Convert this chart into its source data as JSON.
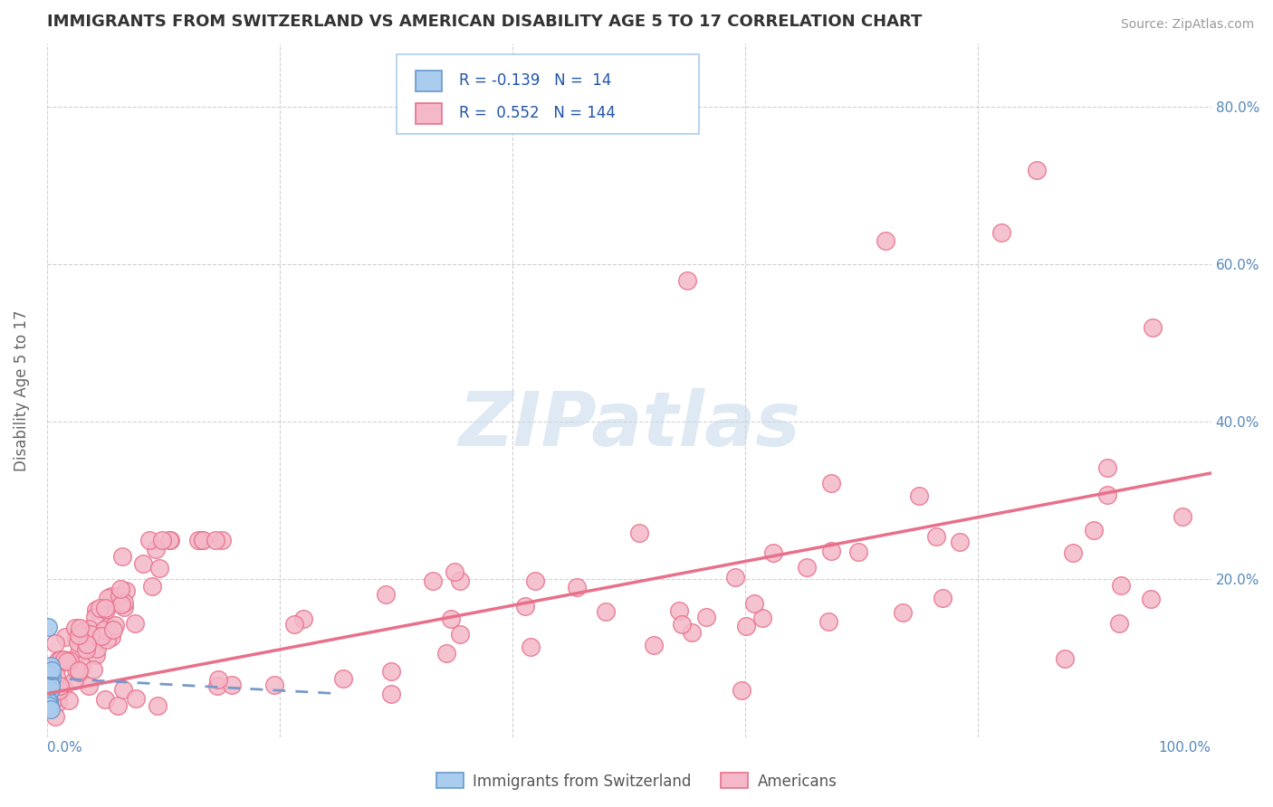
{
  "title": "IMMIGRANTS FROM SWITZERLAND VS AMERICAN DISABILITY AGE 5 TO 17 CORRELATION CHART",
  "source_text": "Source: ZipAtlas.com",
  "ylabel": "Disability Age 5 to 17",
  "xlim": [
    0.0,
    1.0
  ],
  "ylim": [
    0.0,
    0.88
  ],
  "grid_yticks": [
    0.0,
    0.2,
    0.4,
    0.6,
    0.8
  ],
  "right_yticklabels": [
    "",
    "20.0%",
    "40.0%",
    "60.0%",
    "80.0%"
  ],
  "color_swiss_fill": "#aaccee",
  "color_swiss_edge": "#6699cc",
  "color_swiss_line": "#7799cc",
  "color_am_fill": "#f4b8c8",
  "color_am_edge": "#e8708a",
  "color_am_line": "#e8708a",
  "watermark_color": "#c5d8ea",
  "background_color": "#ffffff",
  "grid_color": "#cccccc",
  "tick_color": "#5588bb",
  "swiss_x": [
    0.003,
    0.002,
    0.001,
    0.002,
    0.003,
    0.004,
    0.003,
    0.001,
    0.002,
    0.003,
    0.004,
    0.002,
    0.001,
    0.003
  ],
  "swiss_y": [
    0.09,
    0.065,
    0.055,
    0.045,
    0.07,
    0.075,
    0.06,
    0.045,
    0.08,
    0.065,
    0.085,
    0.04,
    0.14,
    0.035
  ],
  "am_line_x0": 0.0,
  "am_line_y0": 0.055,
  "am_line_x1": 1.0,
  "am_line_y1": 0.335,
  "sw_line_x0": 0.0,
  "sw_line_y0": 0.075,
  "sw_line_x1": 0.25,
  "sw_line_y1": 0.055
}
